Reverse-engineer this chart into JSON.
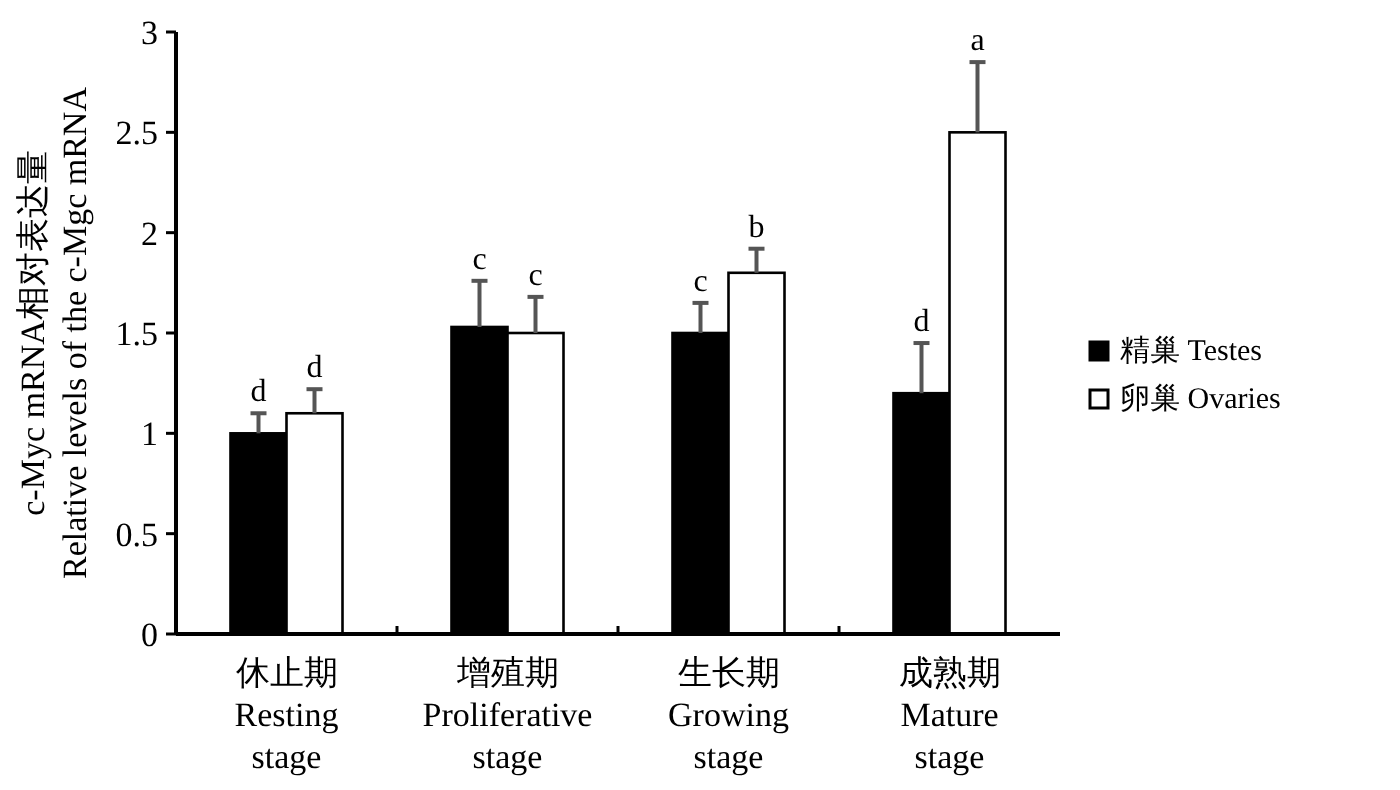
{
  "chart_data": {
    "type": "bar",
    "ylabel": "c-Myc mRNA相对表达量\nRelative levels of the c-Mgc mRNA",
    "categories": [
      "休止期\nResting\nstage",
      "增殖期\nProliferative\nstage",
      "生长期\nGrowing\nstage",
      "成熟期\nMature\nstage"
    ],
    "series": [
      {
        "name": "精巢 Testes",
        "color": "#000000",
        "values": [
          1.0,
          1.53,
          1.5,
          1.2
        ],
        "errors": [
          [
            1.0,
            1.1
          ],
          [
            1.53,
            1.76
          ],
          [
            1.5,
            1.65
          ],
          [
            1.2,
            1.45
          ]
        ],
        "value_labels": [
          "d",
          "c",
          "c",
          "d"
        ]
      },
      {
        "name": "卵巢 Ovaries",
        "color": "#ffffff",
        "values": [
          1.1,
          1.5,
          1.8,
          2.5
        ],
        "errors": [
          [
            1.1,
            1.22
          ],
          [
            1.5,
            1.68
          ],
          [
            1.8,
            1.92
          ],
          [
            2.5,
            2.85
          ]
        ],
        "value_labels": [
          "d",
          "c",
          "b",
          "a"
        ]
      }
    ],
    "ylim": [
      0,
      3
    ],
    "yticks": [
      0,
      0.5,
      1,
      1.5,
      2,
      2.5,
      3
    ],
    "grid": false,
    "legend": "right"
  }
}
